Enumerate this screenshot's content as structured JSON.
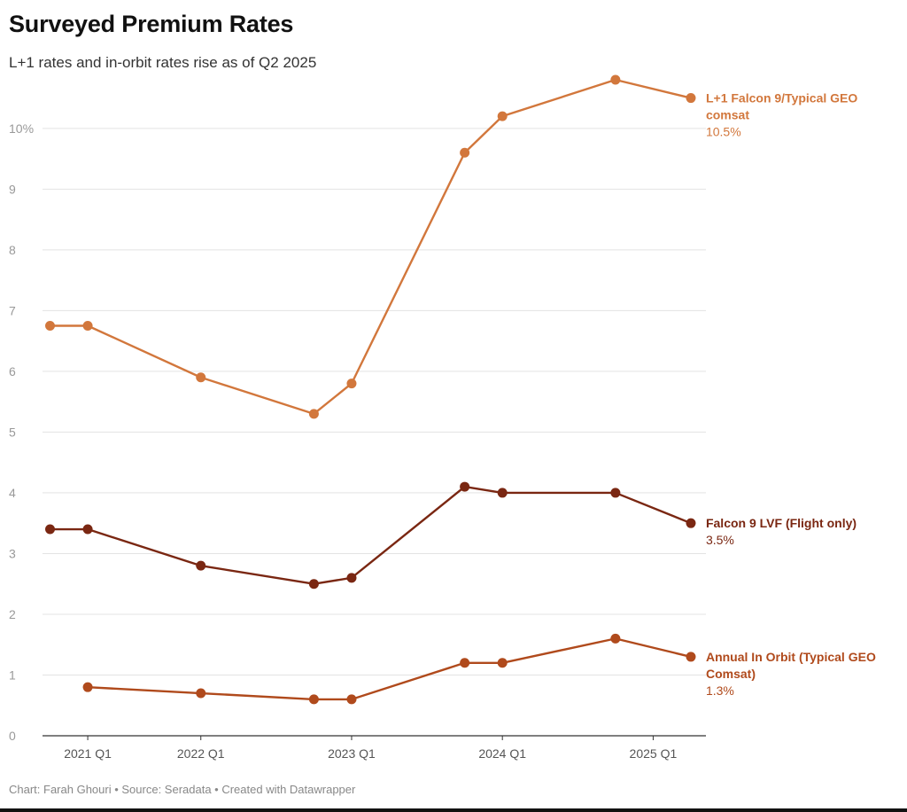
{
  "header": {
    "title": "Surveyed Premium Rates",
    "subtitle": "L+1 rates and in-orbit rates rise as of Q2 2025"
  },
  "footer": {
    "text": "Chart: Farah Ghouri • Source: Seradata • Created with Datawrapper"
  },
  "chart_data": {
    "type": "line",
    "title": "Surveyed Premium Rates",
    "subtitle": "L+1 rates and in-orbit rates rise as of Q2 2025",
    "xlabel": "",
    "ylabel": "",
    "x": [
      2021.0,
      2021.25,
      2022.0,
      2022.75,
      2023.0,
      2023.75,
      2024.0,
      2024.75,
      2025.25
    ],
    "xlim": [
      2020.95,
      2025.35
    ],
    "x_ticks": [
      {
        "value": 2021.25,
        "label": "2021 Q1"
      },
      {
        "value": 2022.0,
        "label": "2022 Q1"
      },
      {
        "value": 2023.0,
        "label": "2023 Q1"
      },
      {
        "value": 2024.0,
        "label": "2024 Q1"
      },
      {
        "value": 2025.0,
        "label": "2025 Q1"
      }
    ],
    "ylim": [
      0,
      10.8
    ],
    "y_ticks": [
      {
        "value": 0,
        "label": "0"
      },
      {
        "value": 1,
        "label": "1"
      },
      {
        "value": 2,
        "label": "2"
      },
      {
        "value": 3,
        "label": "3"
      },
      {
        "value": 4,
        "label": "4"
      },
      {
        "value": 5,
        "label": "5"
      },
      {
        "value": 6,
        "label": "6"
      },
      {
        "value": 7,
        "label": "7"
      },
      {
        "value": 8,
        "label": "8"
      },
      {
        "value": 9,
        "label": "9"
      },
      {
        "value": 10,
        "label": "10%"
      }
    ],
    "grid": true,
    "series": [
      {
        "name": "L+1 Falcon 9/Typical GEO comsat",
        "name_lines": [
          "L+1 Falcon 9/Typical GEO",
          "comsat"
        ],
        "value_label": "10.5%",
        "color": "#d2773c",
        "values": [
          6.75,
          6.75,
          5.9,
          5.3,
          5.8,
          9.6,
          10.2,
          10.8,
          10.5
        ]
      },
      {
        "name": "Falcon 9 LVF (Flight only)",
        "name_lines": [
          "Falcon 9 LVF (Flight only)"
        ],
        "value_label": "3.5%",
        "color": "#7a2712",
        "values": [
          3.4,
          3.4,
          2.8,
          2.5,
          2.6,
          4.1,
          4.0,
          4.0,
          3.5
        ]
      },
      {
        "name": "Annual In Orbit (Typical GEO Comsat)",
        "name_lines": [
          "Annual In Orbit (Typical GEO",
          "Comsat)"
        ],
        "value_label": "1.3%",
        "color": "#b04a1c",
        "values": [
          null,
          0.8,
          0.7,
          0.6,
          0.6,
          1.2,
          1.2,
          1.6,
          1.3
        ]
      }
    ]
  }
}
